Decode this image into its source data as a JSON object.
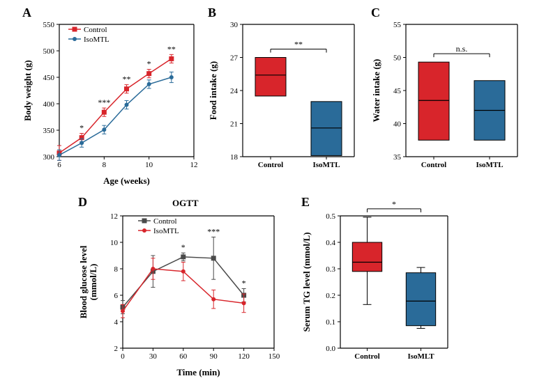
{
  "colors": {
    "control_red": "#d8252b",
    "isomtl_blue": "#2a6b99",
    "control_dark": "#4a4a4a",
    "isomtl_red": "#d8252b",
    "black": "#000000",
    "white": "#ffffff"
  },
  "panelA": {
    "label": "A",
    "ylabel": "Body weight (g)",
    "xlabel": "Age (weeks)",
    "legend": {
      "control": "Control",
      "isomtl": "IsoMTL"
    },
    "xlim": [
      6,
      12
    ],
    "xtick_step": 2,
    "ylim": [
      300,
      550
    ],
    "ytick_step": 50,
    "series": {
      "control": {
        "x": [
          6,
          7,
          8,
          9,
          10,
          11
        ],
        "y": [
          307,
          336,
          384,
          428,
          457,
          485
        ],
        "err": [
          14,
          8,
          8,
          8,
          8,
          8
        ]
      },
      "isomtl": {
        "x": [
          6,
          7,
          8,
          9,
          10,
          11
        ],
        "y": [
          303,
          326,
          351,
          398,
          437,
          450
        ],
        "err": [
          10,
          8,
          8,
          8,
          8,
          10
        ]
      }
    },
    "sigs": [
      {
        "x": 7,
        "label": "*"
      },
      {
        "x": 8,
        "label": "***"
      },
      {
        "x": 9,
        "label": "**"
      },
      {
        "x": 10,
        "label": "*"
      },
      {
        "x": 11,
        "label": "**"
      }
    ]
  },
  "panelB": {
    "label": "B",
    "ylabel": "Food intake (g)",
    "xcats": [
      "Control",
      "IsoMTL"
    ],
    "ylim": [
      18,
      30
    ],
    "ytick_step": 3,
    "boxes": [
      {
        "min": 23.5,
        "q1": 23.5,
        "med": 25.4,
        "q3": 27.0,
        "max": 27.0,
        "color": "#d8252b"
      },
      {
        "min": 18.1,
        "q1": 18.1,
        "med": 20.6,
        "q3": 23.0,
        "max": 23.0,
        "color": "#2a6b99"
      }
    ],
    "sig": "**"
  },
  "panelC": {
    "label": "C",
    "ylabel": "Water intake (g)",
    "xcats": [
      "Control",
      "IsoMTL"
    ],
    "ylim": [
      35,
      55
    ],
    "ytick_step": 5,
    "boxes": [
      {
        "min": 37.5,
        "q1": 37.5,
        "med": 43.5,
        "q3": 49.3,
        "max": 49.3,
        "color": "#d8252b"
      },
      {
        "min": 37.5,
        "q1": 37.5,
        "med": 42.0,
        "q3": 46.5,
        "max": 46.5,
        "color": "#2a6b99"
      }
    ],
    "sig": "n.s."
  },
  "panelD": {
    "label": "D",
    "title": "OGTT",
    "ylabel": "Blood glucose level (mmol/L)",
    "xlabel": "Time (min)",
    "legend": {
      "control": "Control",
      "isomtl": "IsoMTL"
    },
    "xlim": [
      0,
      150
    ],
    "xtick_step": 30,
    "ylim": [
      2,
      12
    ],
    "ytick_step": 2,
    "series": {
      "control": {
        "x": [
          0,
          30,
          60,
          90,
          120
        ],
        "y": [
          5.1,
          7.8,
          8.9,
          8.8,
          6.0
        ],
        "err": [
          0.5,
          1.2,
          0.3,
          1.6,
          0.5
        ]
      },
      "isomtl": {
        "x": [
          0,
          30,
          60,
          90,
          120
        ],
        "y": [
          4.8,
          8.0,
          7.8,
          5.7,
          5.4
        ],
        "err": [
          0.5,
          0.8,
          0.7,
          0.7,
          0.7
        ]
      }
    },
    "sigs": [
      {
        "x": 60,
        "label": "*"
      },
      {
        "x": 90,
        "label": "***"
      },
      {
        "x": 120,
        "label": "*"
      }
    ]
  },
  "panelE": {
    "label": "E",
    "ylabel": "Serum TG level (mmol/L)",
    "xcats": [
      "Control",
      "IsoMLT"
    ],
    "ylim": [
      0.0,
      0.5
    ],
    "ytick_step": 0.1,
    "boxes": [
      {
        "min": 0.165,
        "q1": 0.29,
        "med": 0.325,
        "q3": 0.4,
        "max": 0.495,
        "color": "#d8252b"
      },
      {
        "min": 0.075,
        "q1": 0.085,
        "med": 0.178,
        "q3": 0.285,
        "max": 0.305,
        "color": "#2a6b99"
      }
    ],
    "sig": "*"
  }
}
